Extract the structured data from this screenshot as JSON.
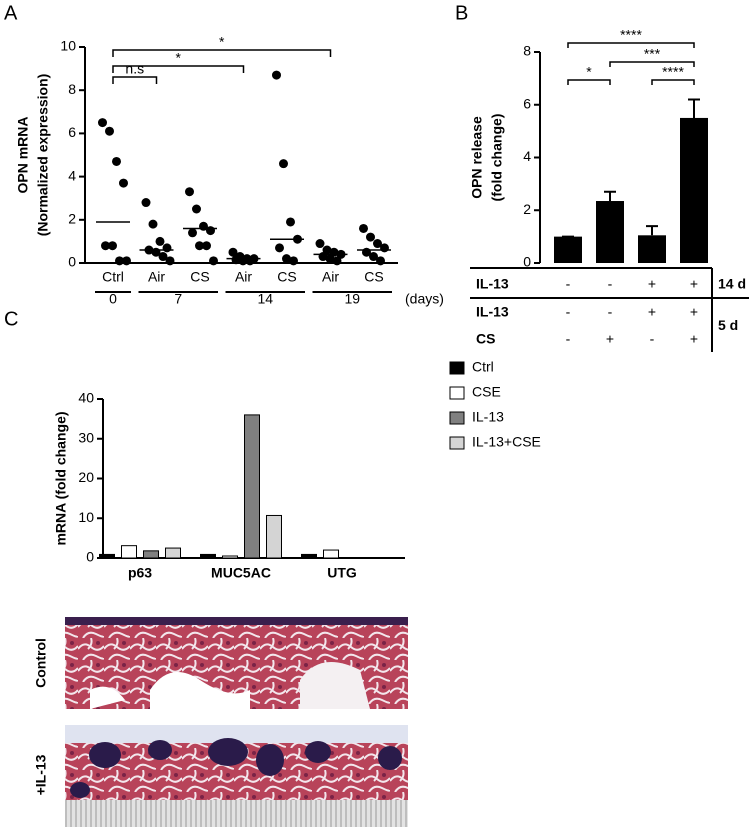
{
  "chart_data": [
    {
      "type": "dot",
      "panel": "A",
      "ylabel": [
        "OPN mRNA",
        "(Normalized expression)"
      ],
      "categories": [
        "Ctrl",
        "Air",
        "CS",
        "Air",
        "CS",
        "Air",
        "CS"
      ],
      "groups": [
        "0",
        "7",
        null,
        "14",
        null,
        "19",
        null
      ],
      "x_unit": "(days)",
      "points": [
        [
          6.5,
          6.1,
          4.7,
          3.7,
          0.8,
          0.8,
          0.1,
          0.1
        ],
        [
          2.8,
          1.8,
          1.0,
          0.7,
          0.6,
          0.5,
          0.3,
          0.1
        ],
        [
          3.3,
          2.5,
          1.7,
          1.5,
          1.4,
          0.8,
          0.8,
          0.1
        ],
        [
          0.5,
          0.3,
          0.2,
          0.2,
          0.15,
          0.1,
          0.1
        ],
        [
          8.7,
          4.6,
          1.9,
          1.1,
          0.7,
          0.2,
          0.1
        ],
        [
          0.9,
          0.6,
          0.5,
          0.4,
          0.3,
          0.2,
          0.1
        ],
        [
          1.6,
          1.2,
          0.9,
          0.7,
          0.5,
          0.3,
          0.1
        ]
      ],
      "medians": [
        1.9,
        0.6,
        1.6,
        0.2,
        1.1,
        0.4,
        0.6
      ],
      "annotations": [
        "n.s",
        "*",
        "*"
      ],
      "ylim": [
        0,
        10
      ],
      "yticks": [
        0,
        2,
        4,
        6,
        8,
        10
      ],
      "color": "#000000"
    },
    {
      "type": "bar",
      "panel": "B",
      "ylabel": [
        "OPN release",
        "(fold change)"
      ],
      "values": [
        1.0,
        2.35,
        1.05,
        5.5
      ],
      "errors": [
        0,
        0.35,
        0.35,
        0.7
      ],
      "color": "#000000",
      "annotations": [
        "*",
        "****",
        "***",
        "****"
      ],
      "treatments": [
        {
          "label": "IL-13",
          "signs": [
            "-",
            "-",
            "+",
            "+"
          ],
          "period": "14 d"
        },
        {
          "label": "IL-13",
          "signs": [
            "-",
            "-",
            "+",
            "+"
          ],
          "period": "5 d"
        },
        {
          "label": "CS",
          "signs": [
            "-",
            "+",
            "-",
            "+"
          ],
          "period": null
        }
      ],
      "ylim": [
        0,
        8
      ],
      "yticks": [
        0,
        2,
        4,
        6,
        8
      ]
    },
    {
      "type": "grouped-bar",
      "panel": "C",
      "ylabel": "mRNA (fold change)",
      "categories": [
        "p63",
        "MUC5AC",
        "UTG"
      ],
      "series": [
        {
          "name": "Ctrl",
          "color": "#000000",
          "values": [
            0.9,
            0.9,
            0.9
          ]
        },
        {
          "name": "CSE",
          "color": "#ffffff",
          "values": [
            3.1,
            0.5,
            2.0
          ]
        },
        {
          "name": "IL-13",
          "color": "#808080",
          "values": [
            1.8,
            36,
            null
          ]
        },
        {
          "name": "IL-13+CSE",
          "color": "#d4d4d4",
          "values": [
            2.5,
            10.7,
            null
          ]
        }
      ],
      "ylim": [
        0,
        40
      ],
      "yticks": [
        0,
        10,
        20,
        30,
        40
      ],
      "legend": "top-right"
    }
  ],
  "histology": {
    "labels": [
      "Control",
      "+IL-13"
    ]
  }
}
